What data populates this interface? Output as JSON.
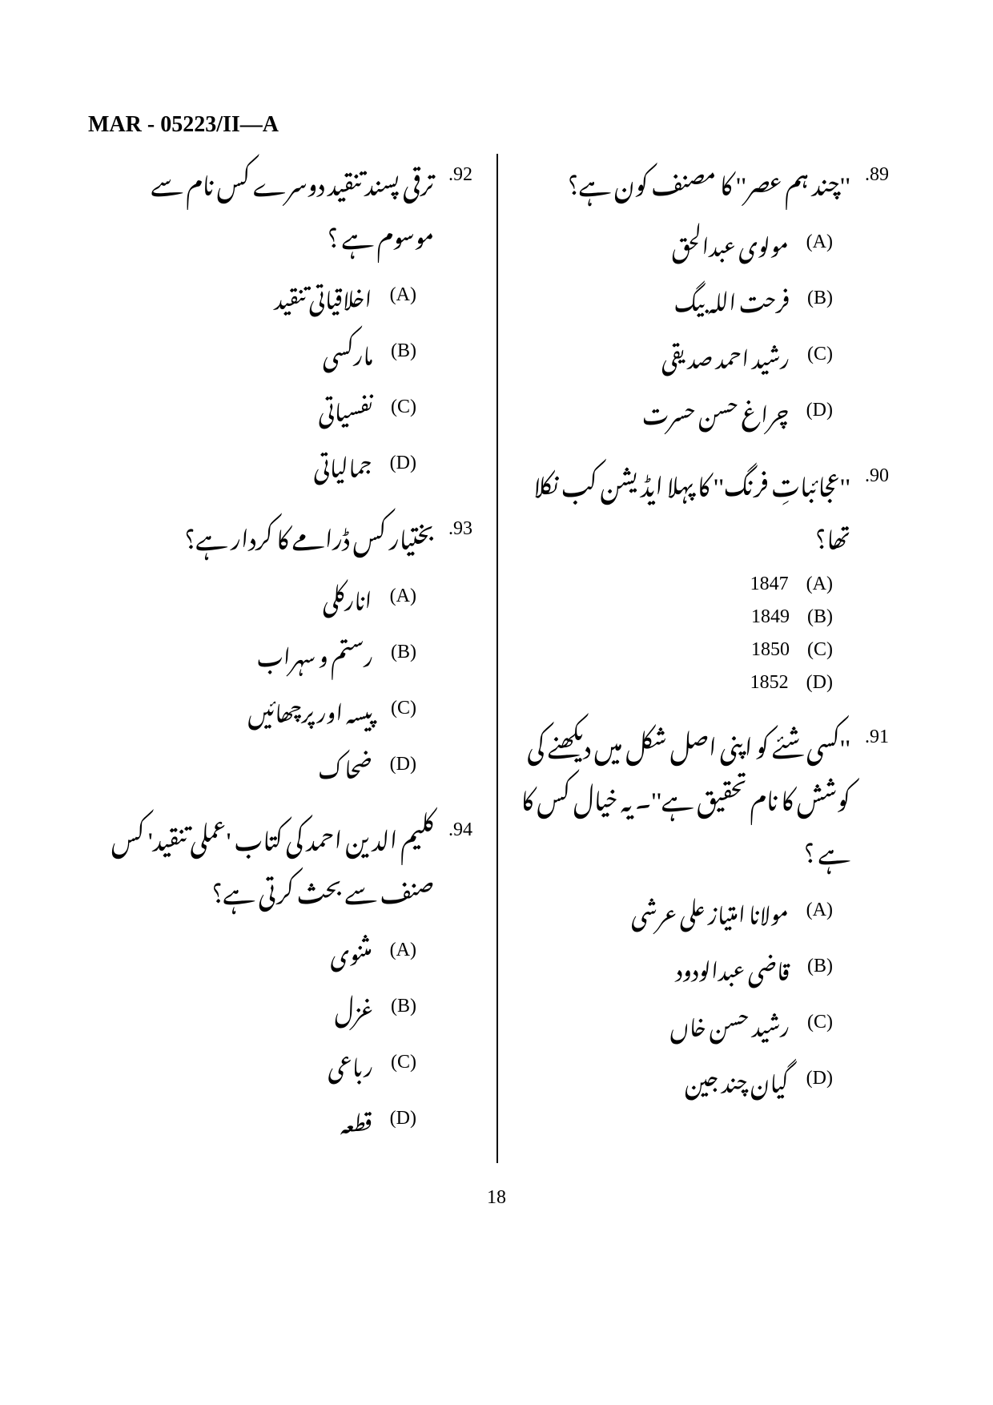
{
  "header": "MAR - 05223/II—A",
  "page_number": "18",
  "colors": {
    "text": "#000000",
    "background": "#ffffff"
  },
  "typography": {
    "header_fontsize": 28,
    "qnum_fontsize": 24,
    "urdu_fontsize": 30,
    "option_fontsize": 28,
    "latin_fontsize": 24
  },
  "left_column": [
    {
      "num": ".89",
      "stem": "''چند ہم عصر'' کا مصنف کون ہے؟",
      "options": [
        {
          "label": "(A)",
          "text": "مولوی عبدالحق",
          "latin": false
        },
        {
          "label": "(B)",
          "text": "فرحت اللہ بیگ",
          "latin": false
        },
        {
          "label": "(C)",
          "text": "رشید احمد صدیقی",
          "latin": false
        },
        {
          "label": "(D)",
          "text": "چراغ حسن حسرت",
          "latin": false
        }
      ]
    },
    {
      "num": ".90",
      "stem": "''عجائباتِ فرنگ'' کا پہلا ایڈیشن کب نکلا تھا؟",
      "options": [
        {
          "label": "(A)",
          "text": "1847",
          "latin": true
        },
        {
          "label": "(B)",
          "text": "1849",
          "latin": true
        },
        {
          "label": "(C)",
          "text": "1850",
          "latin": true
        },
        {
          "label": "(D)",
          "text": "1852",
          "latin": true
        }
      ]
    },
    {
      "num": ".91",
      "stem": "''کسی شئے کو اپنی اصل شکل میں دیکھنے کی کوشش کا نام تحقیق ہے''۔ یہ خیال کس کا ہے ؟",
      "options": [
        {
          "label": "(A)",
          "text": "مولانا امتیاز علی عرشی",
          "latin": false
        },
        {
          "label": "(B)",
          "text": "قاضی عبدالودود",
          "latin": false
        },
        {
          "label": "(C)",
          "text": "رشید حسن خاں",
          "latin": false
        },
        {
          "label": "(D)",
          "text": "گیان چند جین",
          "latin": false
        }
      ]
    }
  ],
  "right_column": [
    {
      "num": ".92",
      "stem": "ترقی پسند تنقید دوسرے کس نام سے موسوم ہے ؟",
      "options": [
        {
          "label": "(A)",
          "text": "اخلاقیاتی تنقید",
          "latin": false
        },
        {
          "label": "(B)",
          "text": "مارکسی",
          "latin": false
        },
        {
          "label": "(C)",
          "text": "نفسیاتی",
          "latin": false
        },
        {
          "label": "(D)",
          "text": "جمالیاتی",
          "latin": false
        }
      ]
    },
    {
      "num": ".93",
      "stem": "بختیار کس ڈرامے کا کردار ہے؟",
      "options": [
        {
          "label": "(A)",
          "text": "انارکلی",
          "latin": false
        },
        {
          "label": "(B)",
          "text": "رستم و سہراب",
          "latin": false
        },
        {
          "label": "(C)",
          "text": "پیسہ اور پرچھائیں",
          "latin": false
        },
        {
          "label": "(D)",
          "text": "ضحاک",
          "latin": false
        }
      ]
    },
    {
      "num": ".94",
      "stem": "کلیم الدین احمد کی کتاب 'عملی تنقید' کس صنف سے بحث کرتی ہے؟",
      "options": [
        {
          "label": "(A)",
          "text": "مثنوی",
          "latin": false
        },
        {
          "label": "(B)",
          "text": "غزل",
          "latin": false
        },
        {
          "label": "(C)",
          "text": "رباعی",
          "latin": false
        },
        {
          "label": "(D)",
          "text": "قطعہ",
          "latin": false
        }
      ]
    }
  ]
}
